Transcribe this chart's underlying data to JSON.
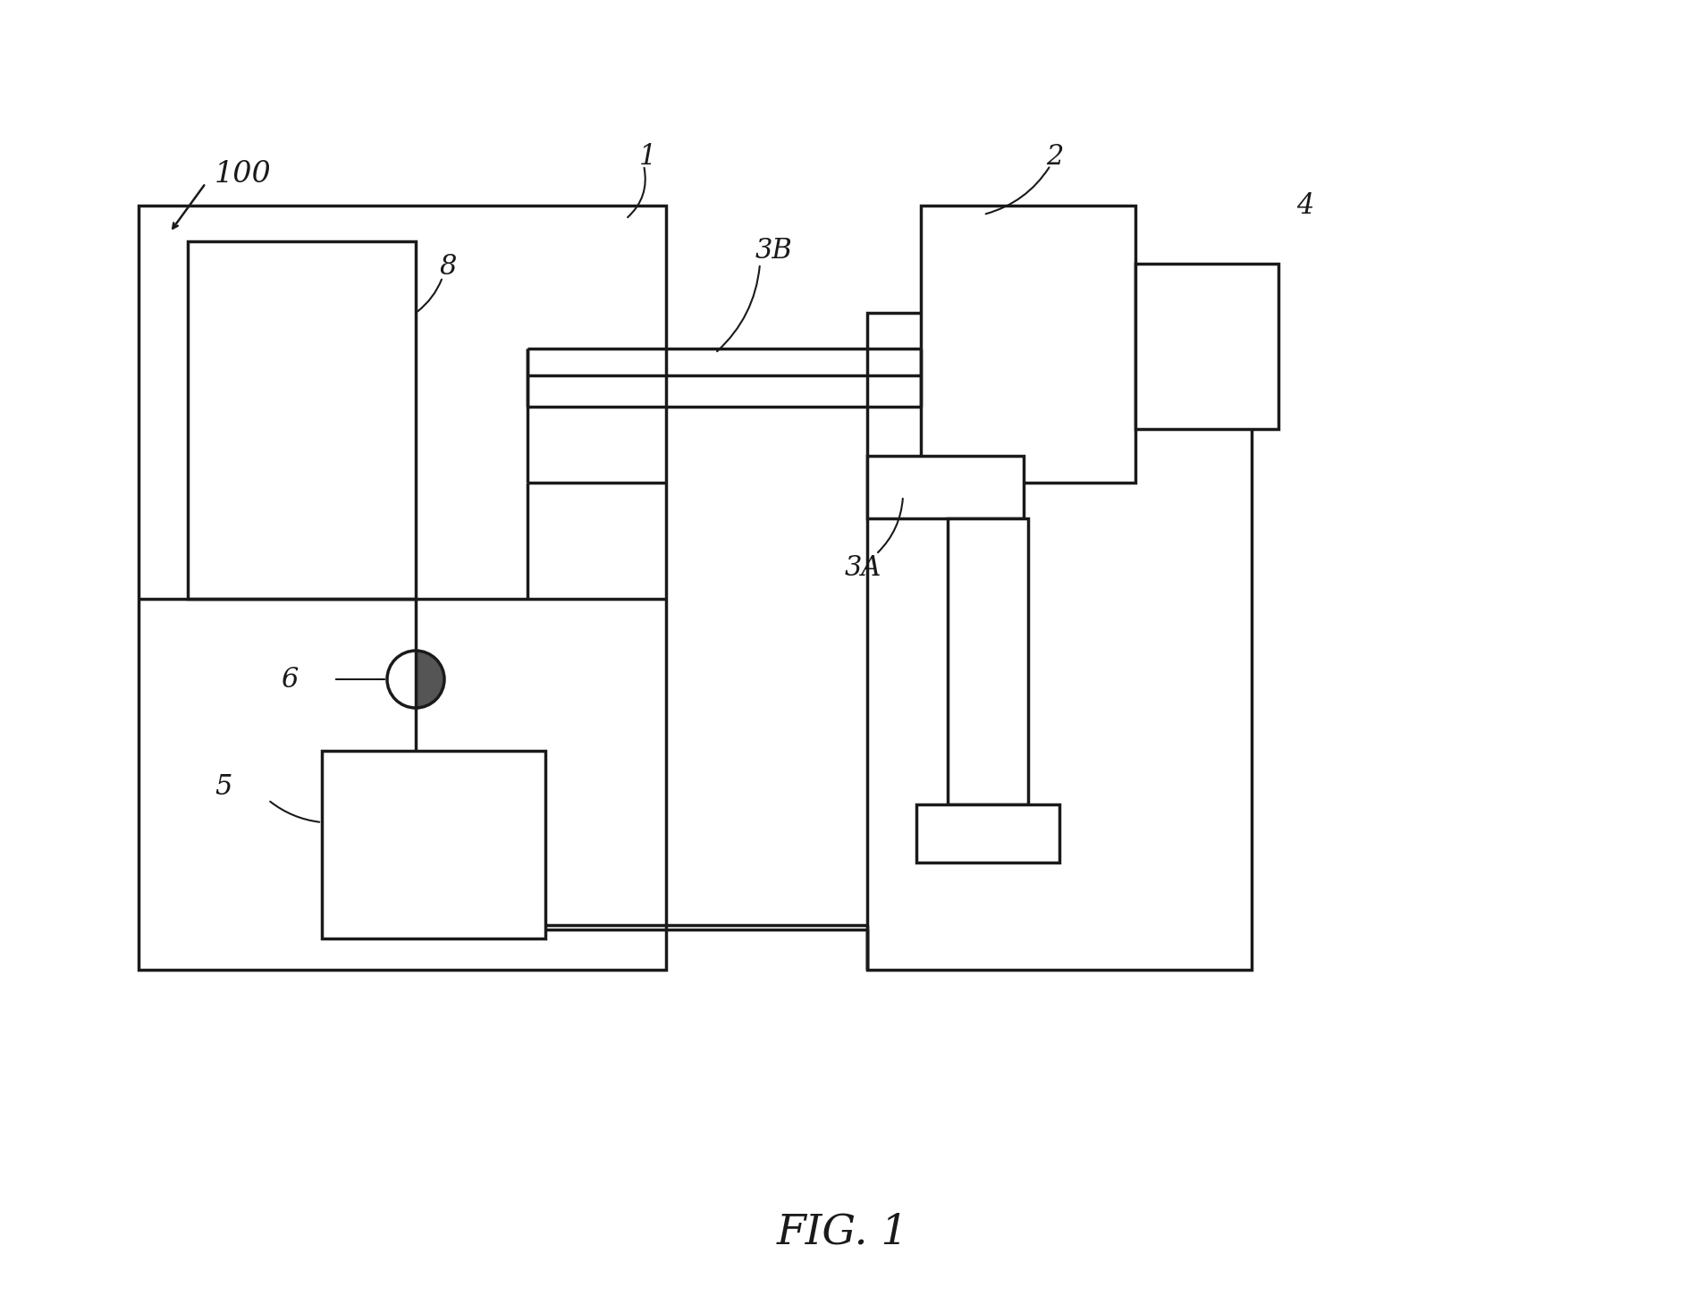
{
  "bg_color": "#ffffff",
  "lc": "#1a1a1a",
  "lw": 2.5,
  "fig_w": 18.87,
  "fig_h": 14.69,
  "title": "FIG. 1",
  "title_fs": 34,
  "label_fs": 22
}
